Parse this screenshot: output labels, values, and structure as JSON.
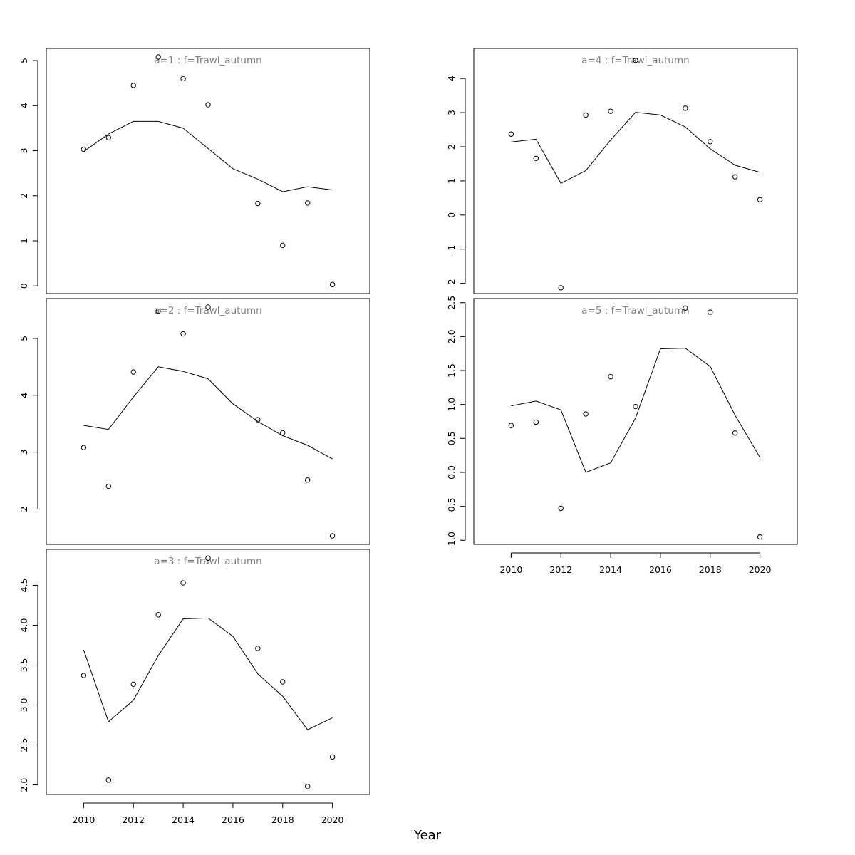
{
  "figure": {
    "xlabel": "Year",
    "line_color": "#000000",
    "point_color": "#000000",
    "title_color": "#808080"
  },
  "chart_data": [
    {
      "type": "line",
      "title": "a=1 : f=Trawl_autumn",
      "xlim": [
        2008.5,
        2021.5
      ],
      "ylim": [
        -0.17,
        5.27
      ],
      "yticks": [
        0,
        1,
        2,
        3,
        4,
        5
      ],
      "yticklabels": [
        "0",
        "1",
        "2",
        "3",
        "4",
        "5"
      ],
      "series": [
        {
          "kind": "points",
          "x": [
            2010,
            2011,
            2012,
            2013,
            2014,
            2015,
            2017,
            2018,
            2019,
            2020
          ],
          "y": [
            3.03,
            3.29,
            4.45,
            5.08,
            4.6,
            4.02,
            1.83,
            0.9,
            1.84,
            0.03
          ]
        },
        {
          "kind": "line",
          "x": [
            2010,
            2011,
            2012,
            2013,
            2014,
            2015,
            2016,
            2017,
            2018,
            2019,
            2020
          ],
          "y": [
            2.98,
            3.37,
            3.65,
            3.65,
            3.5,
            3.05,
            2.6,
            2.37,
            2.09,
            2.2,
            2.13
          ]
        }
      ]
    },
    {
      "type": "line",
      "title": "a=2 : f=Trawl_autumn",
      "xlim": [
        2008.5,
        2021.5
      ],
      "ylim": [
        1.38,
        5.7
      ],
      "yticks": [
        2,
        3,
        4,
        5
      ],
      "yticklabels": [
        "2",
        "3",
        "4",
        "5"
      ],
      "series": [
        {
          "kind": "points",
          "x": [
            2010,
            2011,
            2012,
            2013,
            2014,
            2015,
            2017,
            2018,
            2019,
            2020
          ],
          "y": [
            3.08,
            2.4,
            4.41,
            5.48,
            5.08,
            5.55,
            3.57,
            3.34,
            2.51,
            1.53
          ]
        },
        {
          "kind": "line",
          "x": [
            2010,
            2011,
            2012,
            2013,
            2014,
            2015,
            2016,
            2017,
            2018,
            2019,
            2020
          ],
          "y": [
            3.47,
            3.4,
            3.97,
            4.5,
            4.42,
            4.29,
            3.85,
            3.54,
            3.29,
            3.12,
            2.88
          ]
        }
      ]
    },
    {
      "type": "line",
      "title": "a=3 : f=Trawl_autumn",
      "xlim": [
        2008.5,
        2021.5
      ],
      "ylim": [
        1.88,
        4.95
      ],
      "yticks": [
        2.0,
        2.5,
        3.0,
        3.5,
        4.0,
        4.5
      ],
      "yticklabels": [
        "2.0",
        "2.5",
        "3.0",
        "3.5",
        "4.0",
        "4.5"
      ],
      "series": [
        {
          "kind": "points",
          "x": [
            2010,
            2011,
            2012,
            2013,
            2014,
            2015,
            2017,
            2018,
            2019,
            2020
          ],
          "y": [
            3.37,
            2.06,
            3.26,
            4.13,
            4.53,
            4.84,
            3.71,
            3.29,
            1.98,
            2.35
          ]
        },
        {
          "kind": "line",
          "x": [
            2010,
            2011,
            2012,
            2013,
            2014,
            2015,
            2016,
            2017,
            2018,
            2019,
            2020
          ],
          "y": [
            3.69,
            2.79,
            3.06,
            3.62,
            4.08,
            4.09,
            3.86,
            3.39,
            3.11,
            2.69,
            2.84
          ]
        }
      ]
    },
    {
      "type": "line",
      "title": "a=4 : f=Trawl_autumn",
      "xlim": [
        2008.5,
        2021.5
      ],
      "ylim": [
        -2.3,
        4.88
      ],
      "yticks": [
        -2,
        -1,
        0,
        1,
        2,
        3,
        4
      ],
      "yticklabels": [
        "-2",
        "-1",
        "0",
        "1",
        "2",
        "3",
        "4"
      ],
      "series": [
        {
          "kind": "points",
          "x": [
            2010,
            2011,
            2012,
            2013,
            2014,
            2015,
            2017,
            2018,
            2019,
            2020
          ],
          "y": [
            2.37,
            1.66,
            -2.13,
            2.93,
            3.04,
            4.53,
            3.13,
            2.15,
            1.12,
            0.45
          ]
        },
        {
          "kind": "line",
          "x": [
            2010,
            2011,
            2012,
            2013,
            2014,
            2015,
            2016,
            2017,
            2018,
            2019,
            2020
          ],
          "y": [
            2.14,
            2.22,
            0.93,
            1.3,
            2.2,
            3.01,
            2.93,
            2.58,
            1.94,
            1.46,
            1.25
          ]
        }
      ]
    },
    {
      "type": "line",
      "title": "a=5 : f=Trawl_autumn",
      "xlim": [
        2008.5,
        2021.5
      ],
      "ylim": [
        -1.06,
        2.56
      ],
      "yticks": [
        -1.0,
        -0.5,
        0.0,
        0.5,
        1.0,
        1.5,
        2.0,
        2.5
      ],
      "yticklabels": [
        "-1.0",
        "-0.5",
        "0.0",
        "0.5",
        "1.0",
        "1.5",
        "2.0",
        "2.5"
      ],
      "series": [
        {
          "kind": "points",
          "x": [
            2010,
            2011,
            2012,
            2013,
            2014,
            2015,
            2017,
            2018,
            2019,
            2020
          ],
          "y": [
            0.69,
            0.74,
            -0.53,
            0.86,
            1.41,
            0.97,
            2.42,
            2.36,
            0.58,
            -0.95
          ]
        },
        {
          "kind": "line",
          "x": [
            2010,
            2011,
            2012,
            2013,
            2014,
            2015,
            2016,
            2017,
            2018,
            2019,
            2020
          ],
          "y": [
            0.98,
            1.05,
            0.92,
            0.0,
            0.14,
            0.8,
            1.82,
            1.83,
            1.56,
            0.84,
            0.22
          ]
        }
      ]
    }
  ],
  "xaxis": {
    "ticks": [
      2010,
      2012,
      2014,
      2016,
      2018,
      2020
    ],
    "ticklabels": [
      "2010",
      "2012",
      "2014",
      "2016",
      "2018",
      "2020"
    ]
  }
}
